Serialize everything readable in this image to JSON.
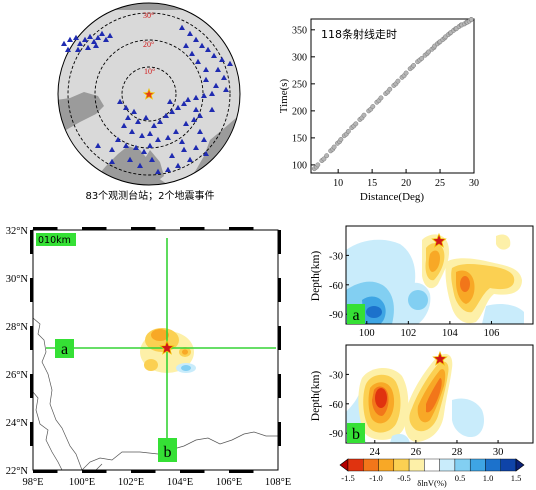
{
  "colors": {
    "land": "#d9d9d9",
    "ocean": "#9b9b9b",
    "station": "#1f2bb0",
    "event": "#d01818",
    "event_outline": "#f2c200",
    "cross_line": "#35d335",
    "label_bg": "#35e035",
    "scatter_point": "#b5b5b5",
    "frame": "#000000"
  },
  "icons": {
    "station_marker": "triangle-icon",
    "event_marker": "star-icon"
  },
  "globe_panel": {
    "ring_labels": [
      "10°",
      "20°",
      "30°"
    ],
    "caption": "83个观测台站；2个地震事件",
    "station_count": 83,
    "event_count": 2
  },
  "chart_data": [
    {
      "type": "scatter",
      "title": "118条射线走时",
      "xlabel": "Distance(Deg)",
      "ylabel": "Time(s)",
      "xlim": [
        6,
        30
      ],
      "ylim": [
        85,
        370
      ],
      "xticks": [
        10,
        15,
        20,
        25,
        30
      ],
      "yticks": [
        100,
        150,
        200,
        250,
        300,
        350
      ],
      "ray_count": 118,
      "grid": false,
      "x": [
        6.5,
        7.0,
        7.6,
        8.3,
        8.9,
        9.4,
        9.9,
        10.4,
        10.9,
        11.5,
        12.0,
        12.6,
        13.2,
        13.8,
        14.5,
        15.1,
        15.7,
        16.3,
        17.0,
        17.6,
        18.2,
        18.8,
        19.4,
        20.0,
        20.6,
        21.1,
        21.7,
        22.3,
        22.8,
        23.3,
        23.8,
        24.2,
        24.6,
        25.0,
        25.4,
        25.8,
        26.2,
        26.6,
        27.0,
        27.4,
        27.8,
        28.2,
        28.6,
        29.0,
        29.3,
        29.6
      ],
      "y": [
        93,
        100,
        108,
        117,
        126,
        133,
        140,
        147,
        154,
        162,
        169,
        176,
        184,
        192,
        200,
        208,
        216,
        224,
        232,
        240,
        247,
        255,
        262,
        270,
        278,
        284,
        291,
        297,
        303,
        309,
        314,
        320,
        324,
        328,
        332,
        337,
        341,
        345,
        349,
        352,
        356,
        359,
        361,
        364,
        366,
        369
      ]
    },
    {
      "type": "heatmap",
      "map_label": "010km",
      "xticks": [
        "98°E",
        "100°E",
        "102°E",
        "104°E",
        "106°E",
        "108°E"
      ],
      "yticks": [
        "22°N",
        "24°N",
        "26°N",
        "28°N",
        "30°N",
        "32°N"
      ],
      "xlim": [
        98,
        108
      ],
      "ylim": [
        22,
        32
      ],
      "profile_labels": [
        "a",
        "b"
      ],
      "profile_a_lat": 27.1,
      "profile_b_lon": 103.4,
      "event_location": [
        103.4,
        27.1
      ]
    },
    {
      "type": "heatmap",
      "panel_label": "a",
      "ylabel": "Depth(km)",
      "xticks": [
        "100",
        "102",
        "104",
        "106"
      ],
      "yticks": [
        "-30",
        "-60",
        "-90"
      ],
      "xlim": [
        99,
        108
      ],
      "ylim": [
        -100,
        0
      ],
      "event_x": 103.4,
      "event_depth": -10
    },
    {
      "type": "heatmap",
      "panel_label": "b",
      "ylabel": "Depth(km)",
      "xticks": [
        "24",
        "26",
        "28",
        "30"
      ],
      "yticks": [
        "-30",
        "-60",
        "-90"
      ],
      "xlim": [
        22.6,
        31.7
      ],
      "ylim": [
        -100,
        0
      ],
      "event_x": 27.1,
      "event_depth": -10
    }
  ],
  "colorbar": {
    "label": "δlnV(%)",
    "ticks": [
      "-1.5",
      "-1.0",
      "-0.5",
      "0.5",
      "1.0",
      "1.5"
    ],
    "range": [
      -1.5,
      1.5
    ],
    "colors": [
      "#b40000",
      "#e0330f",
      "#f2761a",
      "#f8a826",
      "#fbd052",
      "#fdf0a8",
      "#ffffff",
      "#c9ecfb",
      "#82cff2",
      "#3ea5e4",
      "#1c72cc",
      "#0f44a8",
      "#0a2178"
    ]
  }
}
